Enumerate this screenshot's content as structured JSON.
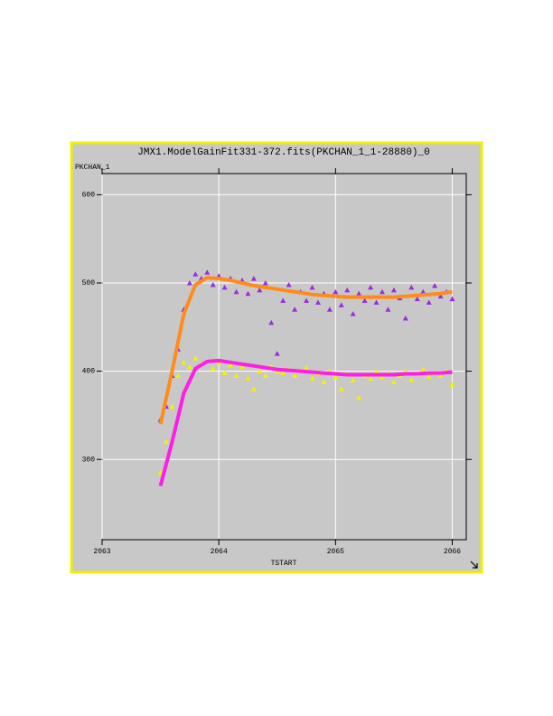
{
  "chart_data": {
    "type": "scatter",
    "title": "JMX1.ModelGainFit331-372.fits(PKCHAN_1_1-28880)_0",
    "y_label": "PKCHAN_1",
    "x_label": "TSTART",
    "xlim": [
      2063,
      2066.12
    ],
    "ylim": [
      209,
      624
    ],
    "xticks": [
      2063,
      2064,
      2065,
      2066
    ],
    "yticks": [
      300,
      400,
      500,
      600
    ],
    "grid": true,
    "series": [
      {
        "color": "#9a2be0",
        "marker": "triangle",
        "x": [
          2063.5,
          2063.55,
          2063.6,
          2063.65,
          2063.7,
          2063.75,
          2063.8,
          2063.85,
          2063.9,
          2063.95,
          2064,
          2064.05,
          2064.1,
          2064.15,
          2064.2,
          2064.25,
          2064.3,
          2064.35,
          2064.4,
          2064.45,
          2064.5,
          2064.55,
          2064.6,
          2064.65,
          2064.7,
          2064.75,
          2064.8,
          2064.85,
          2064.9,
          2064.95,
          2065,
          2065.05,
          2065.1,
          2065.15,
          2065.2,
          2065.25,
          2065.3,
          2065.35,
          2065.4,
          2065.45,
          2065.5,
          2065.55,
          2065.6,
          2065.65,
          2065.7,
          2065.75,
          2065.8,
          2065.85,
          2065.9,
          2065.95,
          2066
        ],
        "values": [
          345,
          360,
          395,
          425,
          470,
          500,
          510,
          505,
          512,
          498,
          508,
          495,
          505,
          490,
          503,
          488,
          505,
          492,
          500,
          455,
          420,
          480,
          498,
          470,
          490,
          480,
          495,
          478,
          488,
          470,
          490,
          475,
          492,
          465,
          488,
          480,
          495,
          478,
          490,
          470,
          492,
          483,
          460,
          495,
          482,
          490,
          478,
          497,
          485,
          490,
          482
        ]
      },
      {
        "color": "#f2f200",
        "marker": "triangle",
        "x": [
          2063.5,
          2063.55,
          2063.6,
          2063.65,
          2063.7,
          2063.75,
          2063.8,
          2063.85,
          2063.9,
          2063.95,
          2064,
          2064.05,
          2064.1,
          2064.15,
          2064.2,
          2064.25,
          2064.3,
          2064.35,
          2064.4,
          2064.45,
          2064.5,
          2064.55,
          2064.6,
          2064.65,
          2064.7,
          2064.75,
          2064.8,
          2064.85,
          2064.9,
          2064.95,
          2065,
          2065.05,
          2065.1,
          2065.15,
          2065.2,
          2065.25,
          2065.3,
          2065.35,
          2065.4,
          2065.45,
          2065.5,
          2065.55,
          2065.6,
          2065.65,
          2065.7,
          2065.75,
          2065.8,
          2065.85,
          2065.9,
          2065.95,
          2066
        ],
        "values": [
          285,
          320,
          360,
          395,
          410,
          405,
          415,
          408,
          412,
          403,
          410,
          398,
          407,
          395,
          405,
          392,
          380,
          400,
          395,
          405,
          400,
          398,
          402,
          395,
          400,
          404,
          392,
          398,
          388,
          400,
          393,
          380,
          397,
          390,
          370,
          395,
          392,
          400,
          393,
          398,
          388,
          395,
          400,
          390,
          397,
          402,
          394,
          398,
          395,
          400,
          385
        ]
      },
      {
        "color": "#ff8c1a",
        "marker": "line",
        "x": [
          2063.5,
          2063.6,
          2063.7,
          2063.8,
          2063.9,
          2064,
          2064.1,
          2064.2,
          2064.3,
          2064.4,
          2064.5,
          2064.6,
          2064.7,
          2064.8,
          2064.9,
          2065,
          2065.1,
          2065.2,
          2065.3,
          2065.4,
          2065.5,
          2065.6,
          2065.7,
          2065.8,
          2065.9,
          2066
        ],
        "values": [
          340,
          400,
          465,
          498,
          506,
          505,
          503,
          500,
          497,
          495,
          493,
          491,
          489,
          487,
          486,
          485,
          484,
          484,
          484,
          484,
          484,
          485,
          486,
          487,
          488,
          490
        ]
      },
      {
        "color": "#ff1ee6",
        "marker": "line",
        "x": [
          2063.5,
          2063.6,
          2063.7,
          2063.8,
          2063.9,
          2064,
          2064.1,
          2064.2,
          2064.3,
          2064.4,
          2064.5,
          2064.6,
          2064.7,
          2064.8,
          2064.9,
          2065,
          2065.1,
          2065.2,
          2065.3,
          2065.4,
          2065.5,
          2065.6,
          2065.7,
          2065.8,
          2065.9,
          2066
        ],
        "values": [
          270,
          320,
          375,
          403,
          411,
          412,
          410,
          408,
          406,
          404,
          402,
          401,
          400,
          399,
          398,
          397,
          396,
          396,
          396,
          396,
          396,
          397,
          397,
          398,
          398,
          399
        ]
      }
    ]
  }
}
